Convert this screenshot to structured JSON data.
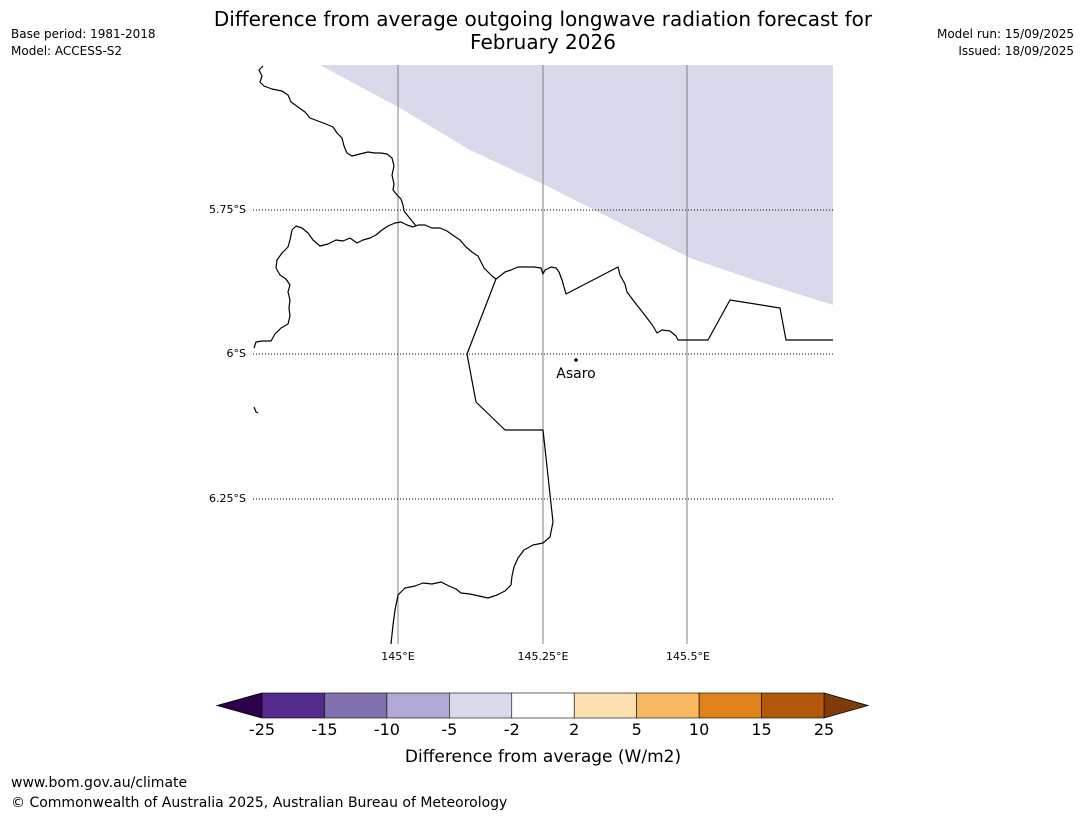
{
  "header": {
    "title_line1": "Difference from average outgoing longwave radiation forecast for",
    "title_line2": "February 2026",
    "base_period": "Base period: 1981-2018",
    "model": "Model: ACCESS-S2",
    "model_run": "Model run: 15/09/2025",
    "issued": "Issued: 18/09/2025"
  },
  "map": {
    "lat_labels": [
      "5.75°S",
      "6°S",
      "6.25°S"
    ],
    "lon_labels": [
      "145°E",
      "145.25°E",
      "145.5°E"
    ],
    "place": {
      "name": "Asaro"
    },
    "anomaly_region": {
      "category": "-5 to -2",
      "color": "#d8d9ea"
    }
  },
  "colorbar": {
    "label": "Difference from average (W/m2)",
    "ticks": [
      "-25",
      "-15",
      "-10",
      "-5",
      "-2",
      "2",
      "5",
      "10",
      "15",
      "25"
    ],
    "colors": [
      "#552a8d",
      "#8170ae",
      "#b1a8d3",
      "#d8d9ea",
      "#ffffff",
      "#fddfb2",
      "#fbb862",
      "#e0821a",
      "#b35708"
    ],
    "extend_low_color": "#2d004b",
    "extend_high_color": "#7f3b08"
  },
  "footer": {
    "url": "www.bom.gov.au/climate",
    "copyright": "© Commonwealth of Australia 2025, Australian Bureau of Meteorology"
  }
}
